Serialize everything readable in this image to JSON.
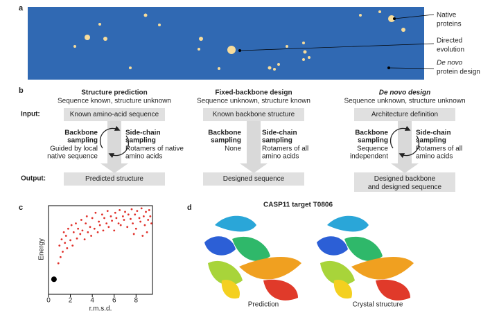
{
  "panel_a": {
    "label": "a",
    "annotations": [
      [
        "Native",
        "proteins"
      ],
      [
        "Directed",
        "evolution"
      ],
      [
        "De novo",
        "protein design"
      ]
    ]
  },
  "panel_b": {
    "label": "b",
    "input_label": "Input:",
    "output_label": "Output:",
    "columns": [
      {
        "title": "Structure prediction",
        "subtitle": "Sequence known, structure unknown",
        "input": [
          "Known amino-acid sequence"
        ],
        "backbone_title": [
          "Backbone",
          "sampling"
        ],
        "backbone_text": [
          "Guided by local",
          "native sequence"
        ],
        "sidechain_title": [
          "Side-chain",
          "sampling"
        ],
        "sidechain_text": [
          "Rotamers of native",
          "amino acids"
        ],
        "output": [
          "Predicted structure"
        ]
      },
      {
        "title": "Fixed-backbone design",
        "subtitle": "Sequence unknown, structure known",
        "input": [
          "Known backbone structure"
        ],
        "backbone_title": [
          "Backbone",
          "sampling"
        ],
        "backbone_text": [
          "None"
        ],
        "sidechain_title": [
          "Side-chain",
          "sampling"
        ],
        "sidechain_text": [
          "Rotamers of all",
          "amino acids"
        ],
        "output": [
          "Designed sequence"
        ]
      },
      {
        "title": "De novo design",
        "subtitle": "Sequence unknown, structure unknown",
        "input": [
          "Architecture definition"
        ],
        "backbone_title": [
          "Backbone",
          "sampling"
        ],
        "backbone_text": [
          "Sequence",
          "independent"
        ],
        "sidechain_title": [
          "Side-chain",
          "sampling"
        ],
        "sidechain_text": [
          "Rotamers of all",
          "amino acids"
        ],
        "output": [
          "Designed backbone",
          "and designed sequence"
        ]
      }
    ]
  },
  "panel_c": {
    "label": "c",
    "chart_data": {
      "type": "scatter",
      "x_label": "r.m.s.d.",
      "y_label": "Energy",
      "xlim": [
        0,
        9.5
      ],
      "xticks": [
        0,
        2,
        4,
        6,
        8
      ],
      "ylim": [
        0,
        1
      ],
      "color": "#e0302a",
      "series": [
        {
          "color": "#e0302a",
          "x": [
            0.9,
            1.0,
            1.1,
            1.2,
            1.3,
            1.4,
            1.5,
            1.6,
            1.7,
            1.8,
            2.0,
            2.1,
            2.2,
            2.3,
            2.5,
            2.6,
            2.7,
            2.9,
            3.0,
            3.1,
            3.3,
            3.4,
            3.5,
            3.6,
            3.8,
            3.9,
            4.0,
            4.2,
            4.3,
            4.5,
            4.6,
            4.7,
            4.9,
            5.0,
            5.1,
            5.3,
            5.4,
            5.5,
            5.7,
            5.8,
            6.0,
            6.1,
            6.2,
            6.4,
            6.5,
            6.6,
            6.8,
            6.9,
            7.0,
            7.2,
            7.3,
            7.5,
            7.6,
            7.7,
            7.9,
            8.0,
            8.1,
            8.3,
            8.4,
            8.5,
            8.7,
            8.8,
            8.9,
            9.1,
            9.2,
            9.3,
            9.4,
            9.0,
            8.6,
            7.8
          ],
          "values": [
            0.35,
            0.55,
            0.42,
            0.62,
            0.48,
            0.7,
            0.58,
            0.66,
            0.52,
            0.74,
            0.61,
            0.78,
            0.55,
            0.7,
            0.8,
            0.63,
            0.74,
            0.68,
            0.84,
            0.72,
            0.62,
            0.8,
            0.88,
            0.7,
            0.76,
            0.66,
            0.86,
            0.74,
            0.92,
            0.7,
            0.82,
            0.78,
            0.9,
            0.72,
            0.86,
            0.8,
            0.94,
            0.76,
            0.88,
            0.83,
            0.72,
            0.92,
            0.86,
            0.8,
            0.95,
            0.78,
            0.88,
            0.84,
            0.93,
            0.76,
            0.9,
            0.85,
            0.96,
            0.8,
            0.9,
            0.74,
            0.94,
            0.86,
            0.82,
            0.97,
            0.88,
            0.78,
            0.93,
            0.84,
            0.95,
            0.88,
            0.8,
            0.7,
            0.66,
            0.68
          ]
        },
        {
          "color": "#000000",
          "x": [
            0.5
          ],
          "values": [
            0.17
          ]
        }
      ]
    }
  },
  "panel_d": {
    "label": "d",
    "title": "CASP11 target T0806",
    "captions": [
      "Prediction",
      "Crystal structure"
    ]
  }
}
